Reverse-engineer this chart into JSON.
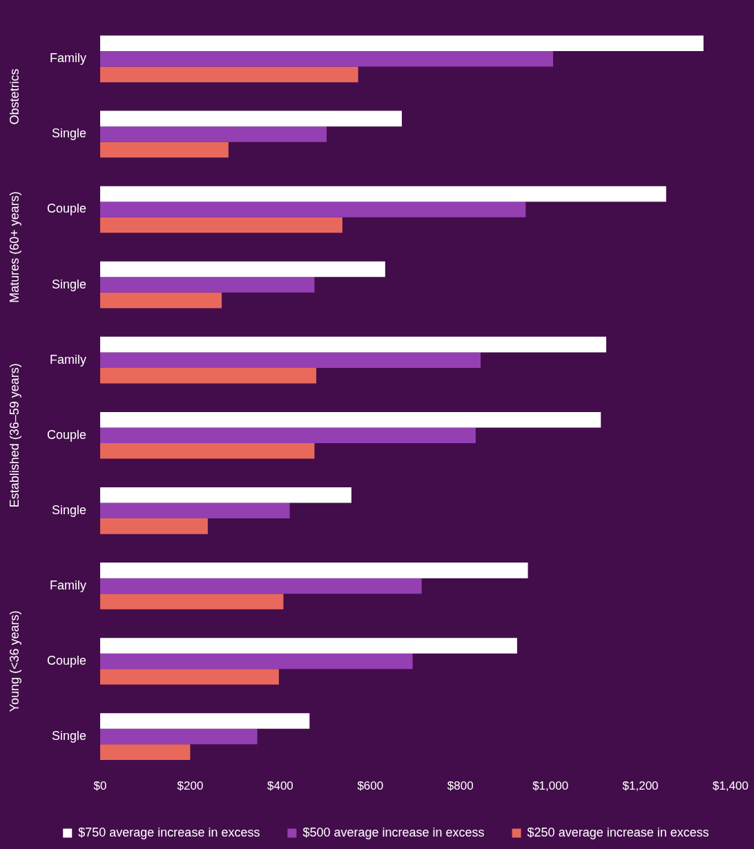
{
  "chart_data": {
    "type": "bar",
    "orientation": "horizontal",
    "categories": [
      "Family",
      "Single",
      "Couple",
      "Single",
      "Family",
      "Couple",
      "Single",
      "Family",
      "Couple",
      "Single"
    ],
    "series": [
      {
        "name": "$750 average increase in excess",
        "color": "#ffffff",
        "values": [
          1340,
          670,
          1257,
          633,
          1124,
          1112,
          558,
          950,
          926,
          465
        ]
      },
      {
        "name": "$500 average increase in excess",
        "color": "#9440b3",
        "values": [
          1006,
          503,
          945,
          476,
          845,
          834,
          421,
          714,
          694,
          349
        ]
      },
      {
        "name": "$250 average increase in excess",
        "color": "#e8695c",
        "values": [
          573,
          285,
          538,
          270,
          480,
          476,
          239,
          407,
          397,
          200
        ]
      }
    ],
    "xlim": [
      0,
      1400
    ],
    "xticks": [
      {
        "value": 0,
        "label": "$0"
      },
      {
        "value": 200,
        "label": "$200"
      },
      {
        "value": 400,
        "label": "$400"
      },
      {
        "value": 600,
        "label": "$600"
      },
      {
        "value": 800,
        "label": "$800"
      },
      {
        "value": 1000,
        "label": "$1,000"
      },
      {
        "value": 1200,
        "label": "$1,200"
      },
      {
        "value": 1400,
        "label": "$1,400"
      }
    ],
    "annotations": [
      "Obstetrics",
      "Matures (60+ years)",
      "Established (36–59 years)",
      "Young (<36 years)"
    ],
    "grid": false,
    "legend": "bottom"
  }
}
